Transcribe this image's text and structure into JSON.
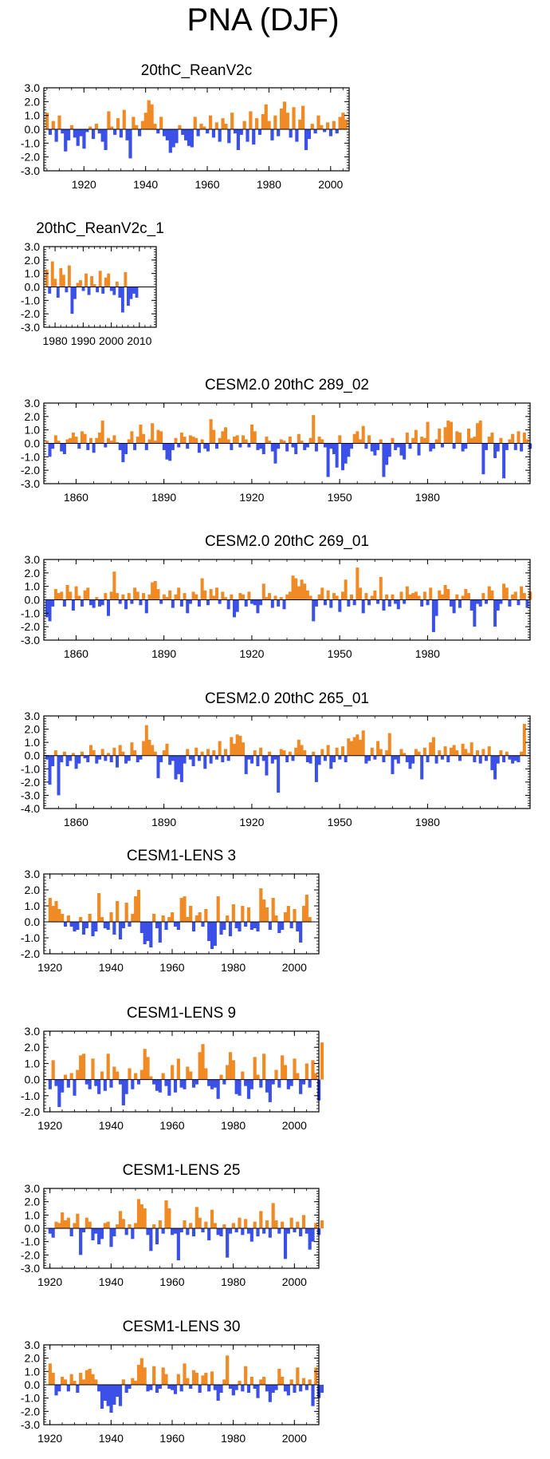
{
  "figure_title": "PNA (DJF)",
  "colors": {
    "positive": "#f08a24",
    "negative": "#3a50e6",
    "axis": "#000000"
  },
  "chart_data": [
    {
      "type": "area",
      "title": "20thC_ReanV2c",
      "x_range": [
        1907,
        2006
      ],
      "ylim": [
        -3.0,
        3.0
      ],
      "y_ticks": [
        "3.0",
        "2.0",
        "1.0",
        "0.0",
        "-1.0",
        "-2.0",
        "-3.0"
      ],
      "x_ticks": [
        1920,
        1940,
        1960,
        1980,
        2000
      ],
      "x_tick_labels": [
        "1920",
        "1940",
        "1960",
        "1980",
        "2000"
      ],
      "x_start": 1908,
      "values": [
        1.2,
        -0.4,
        0.6,
        -0.9,
        1.0,
        -0.3,
        -1.6,
        -0.8,
        0.3,
        -0.6,
        -1.2,
        -0.5,
        -1.4,
        -0.2,
        0.2,
        -0.7,
        0.4,
        -0.3,
        -0.9,
        -1.5,
        1.3,
        0.2,
        -0.4,
        0.8,
        -0.6,
        1.4,
        -0.8,
        -2.1,
        0.9,
        0.3,
        -0.5,
        0.6,
        1.2,
        2.1,
        1.8,
        0.4,
        -0.3,
        0.9,
        -0.5,
        -0.8,
        -1.7,
        -1.3,
        -1.0,
        0.3,
        -0.4,
        -0.8,
        -1.2,
        -1.3,
        0.9,
        -0.5,
        0.4,
        0.2,
        -0.3,
        1.0,
        -0.6,
        0.5,
        -0.9,
        0.8,
        0.4,
        -1.0,
        1.2,
        -0.3,
        -1.5,
        -0.4,
        0.6,
        -0.9,
        1.3,
        -1.1,
        0.8,
        -0.4,
        1.1,
        1.8,
        0.6,
        -0.8,
        1.0,
        -0.5,
        1.5,
        2.0,
        1.2,
        -0.6,
        1.6,
        -0.9,
        0.7,
        1.7,
        -1.5,
        -0.7,
        0.4,
        -0.3,
        1.0,
        0.3,
        -0.2,
        0.5,
        -0.5,
        0.6,
        -0.3,
        0.9,
        1.2,
        0.7
      ]
    },
    {
      "type": "area",
      "title": "20thC_ReanV2c_1",
      "x_range": [
        1976,
        2016
      ],
      "ylim": [
        -3.0,
        3.0
      ],
      "y_ticks": [
        "3.0",
        "2.0",
        "1.0",
        "0.0",
        "-1.0",
        "-2.0",
        "-3.0"
      ],
      "x_ticks": [
        1980,
        1990,
        2000,
        2010
      ],
      "x_tick_labels": [
        "1980",
        "1990",
        "2000",
        "2010"
      ],
      "x_start": 1977,
      "values": [
        1.3,
        -0.5,
        1.9,
        0.6,
        -0.8,
        1.4,
        0.9,
        -0.4,
        1.6,
        -2.0,
        -0.9,
        0.3,
        0.5,
        -0.3,
        1.0,
        -0.6,
        0.8,
        0.2,
        -0.4,
        1.2,
        -0.5,
        0.7,
        1.0,
        -0.3,
        -0.6,
        0.4,
        -0.8,
        -1.9,
        1.1,
        -1.4,
        -0.9,
        -0.5,
        -0.8
      ]
    },
    {
      "type": "area",
      "title": "CESM2.0 20thC 289_02",
      "x_range": [
        1849,
        2015
      ],
      "ylim": [
        -3.0,
        3.0
      ],
      "y_ticks": [
        "3.0",
        "2.0",
        "1.0",
        "0.0",
        "-1.0",
        "-2.0",
        "-3.0"
      ],
      "x_ticks": [
        1860,
        1890,
        1920,
        1950,
        1980
      ],
      "x_tick_labels": [
        "1860",
        "1890",
        "1920",
        "1950",
        "1980"
      ],
      "x_start": 1850,
      "values": [
        0.2,
        -1.0,
        -0.4,
        0.6,
        0.2,
        -0.6,
        -0.8,
        0.3,
        0.4,
        0.8,
        0.5,
        -0.4,
        0.9,
        0.7,
        -0.5,
        0.4,
        -0.7,
        0.4,
        0.8,
        1.7,
        -0.3,
        0.4,
        0.2,
        0.6,
        0.1,
        -0.5,
        -1.4,
        -0.8,
        0.3,
        0.9,
        -0.5,
        0.5,
        1.4,
        0.7,
        -0.5,
        0.3,
        1.5,
        0.2,
        1.0,
        0.9,
        -0.5,
        -1.2,
        -1.3,
        -0.5,
        0.4,
        -0.3,
        0.8,
        0.5,
        -0.4,
        0.6,
        0.5,
        0.4,
        -0.7,
        0.3,
        -0.4,
        -0.6,
        1.8,
        1.0,
        -0.4,
        0.4,
        0.9,
        1.2,
        0.3,
        -0.5,
        0.5,
        0.6,
        -0.3,
        0.6,
        0.3,
        -0.3,
        1.4,
        0.9,
        -0.5,
        -0.4,
        -0.8,
        0.5,
        0.2,
        -0.6,
        -1.5,
        -0.4,
        0.3,
        0.2,
        -0.6,
        0.5,
        -0.3,
        -0.8,
        0.7,
        0.2,
        -0.5,
        -0.3,
        0.4,
        2.1,
        -0.6,
        0.5,
        0.3,
        -0.3,
        -2.5,
        -0.4,
        -0.8,
        -1.8,
        0.6,
        -2.0,
        -1.5,
        -1.0,
        -0.4,
        0.7,
        0.9,
        0.3,
        1.3,
        -0.4,
        0.6,
        -0.6,
        -0.9,
        -0.5,
        0.3,
        -2.5,
        -1.6,
        -1.0,
        0.4,
        -0.5,
        -0.3,
        -0.9,
        -1.2,
        0.8,
        -0.4,
        0.4,
        1.0,
        -0.9,
        0.5,
        0.4,
        1.6,
        -0.6,
        -0.4,
        0.3,
        1.1,
        -0.3,
        1.2,
        1.7,
        1.6,
        -0.4,
        0.9,
        0.8,
        -0.6,
        -0.4,
        1.1,
        0.4,
        0.5,
        1.5,
        1.7,
        -2.3,
        -0.5,
        0.5,
        0.8,
        -1.1,
        -0.6,
        0.4,
        -2.6,
        -0.5,
        0.3,
        0.7,
        -0.5,
        0.9,
        -0.6,
        0.8,
        0.3,
        -0.4
      ]
    },
    {
      "type": "area",
      "title": "CESM2.0 20thC 269_01",
      "x_range": [
        1849,
        2015
      ],
      "ylim": [
        -3.0,
        3.0
      ],
      "y_ticks": [
        "3.0",
        "2.0",
        "1.0",
        "0.0",
        "-1.0",
        "-2.0",
        "-3.0"
      ],
      "x_ticks": [
        1860,
        1890,
        1920,
        1950,
        1980
      ],
      "x_tick_labels": [
        "1860",
        "1890",
        "1920",
        "1950",
        "1980"
      ],
      "x_start": 1850,
      "values": [
        -1.3,
        -1.6,
        -0.5,
        0.8,
        0.5,
        0.6,
        -0.5,
        1.1,
        0.6,
        -0.8,
        1.0,
        0.3,
        -0.5,
        0.7,
        0.9,
        -0.4,
        -0.6,
        0.2,
        -0.5,
        -0.4,
        0.5,
        -1.2,
        0.6,
        2.1,
        0.5,
        -0.3,
        0.4,
        -0.7,
        0.5,
        -0.3,
        0.9,
        0.6,
        -0.4,
        0.5,
        -1.0,
        0.4,
        1.3,
        1.4,
        0.8,
        -0.3,
        0.4,
        0.2,
        0.7,
        -0.6,
        0.4,
        0.9,
        -0.5,
        0.5,
        -1.0,
        -0.3,
        0.6,
        0.4,
        -0.5,
        1.6,
        0.7,
        -0.4,
        0.8,
        0.3,
        0.9,
        -0.3,
        0.6,
        0.2,
        -0.7,
        0.4,
        -1.3,
        -0.9,
        0.5,
        0.4,
        -0.5,
        0.6,
        -0.3,
        -0.4,
        -1.0,
        -0.4,
        1.2,
        0.2,
        0.5,
        -0.6,
        0.3,
        -0.5,
        0.2,
        -0.7,
        0.4,
        0.6,
        1.8,
        1.6,
        1.0,
        1.5,
        1.2,
        0.7,
        0.3,
        -1.6,
        -0.5,
        0.4,
        0.9,
        -0.4,
        0.7,
        -0.6,
        0.5,
        0.3,
        -0.9,
        0.6,
        1.5,
        -0.5,
        0.4,
        -0.4,
        2.4,
        0.9,
        -1.0,
        0.5,
        -0.4,
        0.3,
        0.7,
        -0.3,
        1.7,
        -0.8,
        0.4,
        -0.5,
        0.4,
        -0.3,
        -0.7,
        0.6,
        -0.3,
        1.0,
        0.4,
        0.5,
        0.6,
        0.3,
        -0.5,
        0.6,
        -0.4,
        0.9,
        -2.4,
        -1.2,
        0.7,
        0.4,
        1.1,
        0.8,
        -0.5,
        -1.0,
        0.4,
        -0.6,
        0.3,
        0.8,
        0.5,
        -0.8,
        -2.0,
        -0.3,
        -0.5,
        0.5,
        -0.3,
        1.0,
        0.7,
        -2.0,
        -0.8,
        -0.3,
        1.2,
        0.9,
        -0.5,
        0.4,
        0.6,
        -0.4,
        1.0,
        0.5,
        -0.6,
        0.6
      ]
    },
    {
      "type": "area",
      "title": "CESM2.0 20thC 265_01",
      "x_range": [
        1849,
        2015
      ],
      "ylim": [
        -4.0,
        3.0
      ],
      "y_ticks": [
        "3.0",
        "2.0",
        "1.0",
        "0.0",
        "-1.0",
        "-2.0",
        "-3.0",
        "-4.0"
      ],
      "x_ticks": [
        1860,
        1890,
        1920,
        1950,
        1980
      ],
      "x_tick_labels": [
        "1860",
        "1890",
        "1920",
        "1950",
        "1980"
      ],
      "x_start": 1850,
      "values": [
        -0.3,
        -2.2,
        -0.8,
        0.4,
        -3.0,
        -0.5,
        0.3,
        -0.8,
        -0.4,
        0.2,
        -1.0,
        -0.6,
        0.3,
        -0.2,
        -0.5,
        0.8,
        0.4,
        -0.6,
        -0.3,
        0.5,
        -0.4,
        0.2,
        -0.5,
        0.6,
        -0.9,
        0.8,
        0.3,
        -0.6,
        -0.4,
        1.0,
        0.4,
        -0.5,
        -0.3,
        1.1,
        2.3,
        1.2,
        0.8,
        0.3,
        -1.7,
        -0.5,
        0.4,
        0.9,
        -0.7,
        -0.4,
        -1.8,
        -1.4,
        -2.0,
        -0.6,
        0.5,
        -0.3,
        -0.8,
        0.6,
        -0.4,
        0.3,
        -1.0,
        0.5,
        -0.6,
        0.4,
        -0.3,
        1.1,
        -0.5,
        0.5,
        -0.4,
        1.4,
        0.9,
        1.6,
        1.5,
        1.0,
        -1.4,
        -0.3,
        -0.6,
        0.4,
        -0.8,
        0.6,
        -0.4,
        -1.5,
        0.3,
        -0.6,
        -0.3,
        -2.8,
        0.5,
        0.4,
        -0.5,
        0.3,
        -0.4,
        0.6,
        1.2,
        0.8,
        0.4,
        -0.5,
        -0.6,
        0.3,
        -2.0,
        -0.7,
        0.5,
        -0.4,
        0.8,
        -1.0,
        -0.5,
        0.6,
        -0.3,
        0.7,
        -0.5,
        1.3,
        1.1,
        1.4,
        1.6,
        1.2,
        1.9,
        -0.6,
        -0.4,
        0.6,
        -0.3,
        1.1,
        0.5,
        -0.5,
        0.4,
        1.7,
        -1.4,
        -0.3,
        -0.6,
        0.5,
        0.2,
        -0.5,
        -1.0,
        -0.6,
        0.5,
        0.3,
        -1.8,
        0.6,
        -0.5,
        1.0,
        1.4,
        -0.6,
        0.4,
        -0.3,
        0.7,
        -0.5,
        0.6,
        0.8,
        0.4,
        -0.4,
        0.9,
        0.5,
        0.2,
        1.0,
        -0.5,
        0.4,
        -0.6,
        0.5,
        -0.4,
        0.7,
        -1.1,
        -1.8,
        -0.6,
        0.4,
        -0.5,
        0.3,
        -0.3,
        -0.6,
        -0.4,
        -0.5,
        0.3,
        2.4
      ]
    },
    {
      "type": "area",
      "title": "CESM1-LENS 3",
      "x_range": [
        1918,
        2008
      ],
      "ylim": [
        -2.0,
        3.0
      ],
      "y_ticks": [
        "3.0",
        "2.0",
        "1.0",
        "0.0",
        "-1.0",
        "-2.0"
      ],
      "x_ticks": [
        1920,
        1940,
        1960,
        1980,
        2000
      ],
      "x_tick_labels": [
        "1920",
        "1940",
        "1960",
        "1980",
        "2000"
      ],
      "x_start": 1920,
      "values": [
        1.5,
        1.0,
        1.3,
        0.8,
        0.5,
        -0.3,
        0.4,
        -0.3,
        -0.6,
        -0.5,
        0.3,
        -0.8,
        -0.4,
        0.5,
        -0.9,
        -0.6,
        1.8,
        0.3,
        -0.4,
        -0.5,
        0.6,
        -0.8,
        1.3,
        -1.1,
        -0.4,
        1.2,
        -0.3,
        0.5,
        1.6,
        2.0,
        -0.7,
        -1.4,
        -1.2,
        -1.6,
        0.5,
        -0.4,
        -1.3,
        0.4,
        -0.5,
        0.3,
        0.6,
        -0.3,
        -0.5,
        1.5,
        1.6,
        0.3,
        1.0,
        -0.6,
        0.4,
        0.6,
        -0.3,
        0.8,
        -1.2,
        -1.7,
        -1.5,
        1.6,
        -0.8,
        -0.5,
        0.4,
        -0.9,
        1.1,
        -0.4,
        -0.6,
        1.0,
        -0.3,
        0.9,
        -0.5,
        -0.4,
        -0.6,
        2.1,
        1.4,
        0.9,
        -0.5,
        1.5,
        0.4,
        -0.7,
        -0.5,
        0.6,
        1.0,
        -0.4,
        0.8,
        -0.6,
        -1.3,
        1.0,
        1.7,
        0.3
      ]
    },
    {
      "type": "area",
      "title": "CESM1-LENS 9",
      "x_range": [
        1918,
        2008
      ],
      "ylim": [
        -2.0,
        3.0
      ],
      "y_ticks": [
        "3.0",
        "2.0",
        "1.0",
        "0.0",
        "-1.0",
        "-2.0"
      ],
      "x_ticks": [
        1920,
        1940,
        1960,
        1980,
        2000
      ],
      "x_tick_labels": [
        "1920",
        "1940",
        "1960",
        "1980",
        "2000"
      ],
      "x_start": 1920,
      "values": [
        -0.6,
        1.2,
        -0.4,
        -1.7,
        -0.8,
        0.3,
        -0.5,
        0.4,
        -1.0,
        0.6,
        1.5,
        1.6,
        -0.3,
        -0.6,
        1.3,
        -0.4,
        -0.9,
        0.5,
        -0.7,
        1.6,
        -0.5,
        0.8,
        0.5,
        -0.3,
        -1.6,
        -0.9,
        0.7,
        -0.6,
        0.4,
        -0.3,
        0.6,
        1.9,
        1.4,
        0.2,
        -0.3,
        -0.7,
        -0.8,
        0.4,
        -0.4,
        -1.0,
        0.9,
        -0.8,
        1.3,
        -0.5,
        -0.6,
        0.8,
        0.5,
        -0.5,
        -0.3,
        1.7,
        2.2,
        0.7,
        -0.4,
        -0.6,
        -0.5,
        -1.2,
        0.3,
        -0.3,
        0.9,
        1.7,
        1.2,
        -0.9,
        -1.0,
        0.5,
        -0.4,
        -1.2,
        -0.6,
        1.4,
        0.3,
        -0.5,
        1.6,
        -0.8,
        -1.4,
        -0.3,
        0.6,
        -0.5,
        1.5,
        0.9,
        -0.6,
        -0.4,
        1.3,
        0.4,
        -0.9,
        -0.3,
        1.0,
        -0.5,
        1.2,
        0.4,
        -1.3,
        2.3
      ]
    },
    {
      "type": "area",
      "title": "CESM1-LENS 25",
      "x_range": [
        1918,
        2008
      ],
      "ylim": [
        -3.0,
        3.0
      ],
      "y_ticks": [
        "3.0",
        "2.0",
        "1.0",
        "0.0",
        "-1.0",
        "-2.0",
        "-3.0"
      ],
      "x_ticks": [
        1920,
        1940,
        1960,
        1980,
        2000
      ],
      "x_tick_labels": [
        "1920",
        "1940",
        "1960",
        "1980",
        "2000"
      ],
      "x_start": 1920,
      "values": [
        -0.4,
        -0.7,
        0.5,
        0.4,
        1.2,
        0.6,
        0.8,
        -0.6,
        0.4,
        1.1,
        -2.0,
        -0.3,
        0.8,
        0.5,
        -0.9,
        -0.4,
        -1.2,
        -0.8,
        0.4,
        0.5,
        -1.4,
        -0.6,
        0.3,
        1.3,
        0.7,
        -0.5,
        0.3,
        -0.8,
        0.4,
        2.2,
        1.8,
        1.5,
        -0.5,
        -1.7,
        0.3,
        -1.2,
        0.6,
        -0.4,
        2.1,
        1.5,
        -0.5,
        -0.4,
        -2.4,
        -0.3,
        0.6,
        -0.5,
        0.4,
        -0.6,
        1.6,
        0.8,
        -0.3,
        0.5,
        -0.9,
        1.4,
        0.4,
        -0.5,
        -0.6,
        0.3,
        -2.2,
        -0.4,
        0.4,
        -0.3,
        0.8,
        -0.5,
        0.7,
        -0.4,
        -1.0,
        0.5,
        -0.6,
        1.3,
        -0.4,
        0.6,
        -0.7,
        1.9,
        0.6,
        -0.4,
        0.5,
        -2.3,
        -0.4,
        0.8,
        -0.3,
        0.5,
        -0.6,
        1.0,
        -0.4,
        -1.6,
        -1.0,
        0.4,
        -0.5,
        0.6
      ]
    },
    {
      "type": "area",
      "title": "CESM1-LENS 30",
      "x_range": [
        1918,
        2008
      ],
      "ylim": [
        -3.0,
        3.0
      ],
      "y_ticks": [
        "3.0",
        "2.0",
        "1.0",
        "0.0",
        "-1.0",
        "-2.0",
        "-3.0"
      ],
      "x_ticks": [
        1920,
        1940,
        1960,
        1980,
        2000
      ],
      "x_tick_labels": [
        "1920",
        "1940",
        "1960",
        "1980",
        "2000"
      ],
      "x_start": 1920,
      "values": [
        1.6,
        0.9,
        -0.8,
        -0.5,
        0.6,
        0.4,
        -0.5,
        0.8,
        0.3,
        -0.6,
        0.9,
        0.4,
        1.1,
        1.2,
        0.8,
        0.4,
        -0.5,
        -1.8,
        -1.2,
        -1.6,
        -2.1,
        -1.5,
        -0.9,
        -1.6,
        0.4,
        -0.6,
        -0.3,
        0.5,
        0.3,
        1.5,
        2.0,
        1.3,
        -0.5,
        -0.4,
        1.4,
        -0.6,
        -0.3,
        1.3,
        0.8,
        -0.3,
        -0.4,
        -0.7,
        0.8,
        -0.5,
        1.6,
        0.5,
        -0.3,
        1.1,
        0.9,
        -0.6,
        0.7,
        0.9,
        -0.5,
        1.0,
        -0.4,
        -1.2,
        -0.6,
        0.4,
        2.2,
        -0.3,
        -0.8,
        -0.4,
        0.3,
        -0.5,
        1.4,
        -0.6,
        0.6,
        -0.3,
        -1.0,
        0.4,
        0.6,
        -0.5,
        -1.3,
        -0.6,
        -0.4,
        1.2,
        0.6,
        -0.5,
        -0.8,
        0.4,
        -0.6,
        1.3,
        -0.5,
        0.5,
        -0.4,
        0.4,
        -1.6,
        1.3,
        -1.0,
        -0.6
      ]
    }
  ]
}
